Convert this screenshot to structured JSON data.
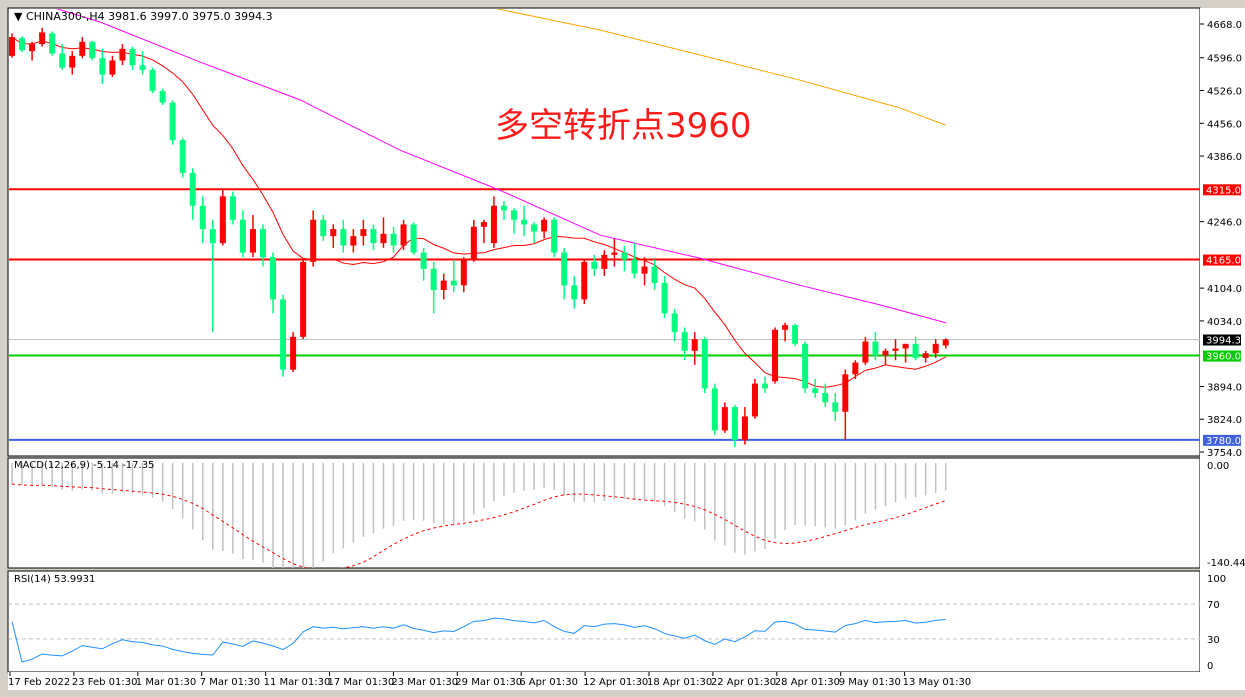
{
  "header": {
    "symbol_line": "CHINA300-,H4  3981.6 3997.0 3975.0 3994.3"
  },
  "annotation": "多空转折点3960",
  "macd_title": "MACD(12,26,9) -5.14 -17.35",
  "rsi_title": "RSI(14) 53.9931",
  "colors": {
    "bull": "#ff0000",
    "bear": "#00ff7f",
    "ma_fast": "#ff0000",
    "ma_mid": "#ff00ff",
    "ma_slow": "#ffa500",
    "macd_hist": "#c0c0c0",
    "macd_signal": "#ff0000",
    "rsi": "#1e90ff",
    "res": "#ff0000",
    "sup": "#00cc00",
    "low": "#4060e0",
    "bid": "#c0c0c0"
  },
  "chart_data": {
    "type": "candlestick",
    "symbol": "CHINA300-",
    "timeframe": "H4",
    "ylim": [
      3754,
      4668
    ],
    "price_ticks": [
      "4668.0",
      "4596.0",
      "4526.0",
      "4456.0",
      "4386.0",
      "4246.0",
      "4104.0",
      "4034.0",
      "3894.0",
      "3824.0",
      "3754.0"
    ],
    "x_labels": [
      "17 Feb 2022",
      "23 Feb 01:30",
      "1 Mar 01:30",
      "7 Mar 01:30",
      "11 Mar 01:30",
      "17 Mar 01:30",
      "23 Mar 01:30",
      "29 Mar 01:30",
      "6 Apr 01:30",
      "12 Apr 01:30",
      "18 Apr 01:30",
      "22 Apr 01:30",
      "28 Apr 01:30",
      "9 May 01:30",
      "13 May 01:30"
    ],
    "ohlc": [
      [
        4600,
        4648,
        4596,
        4640
      ],
      [
        4638,
        4642,
        4608,
        4612
      ],
      [
        4610,
        4630,
        4590,
        4625
      ],
      [
        4625,
        4660,
        4620,
        4650
      ],
      [
        4648,
        4652,
        4600,
        4605
      ],
      [
        4605,
        4625,
        4570,
        4575
      ],
      [
        4575,
        4610,
        4560,
        4600
      ],
      [
        4600,
        4640,
        4595,
        4630
      ],
      [
        4630,
        4632,
        4590,
        4595
      ],
      [
        4595,
        4615,
        4540,
        4560
      ],
      [
        4560,
        4600,
        4555,
        4590
      ],
      [
        4590,
        4625,
        4580,
        4615
      ],
      [
        4615,
        4620,
        4570,
        4580
      ],
      [
        4580,
        4610,
        4560,
        4570
      ],
      [
        4570,
        4575,
        4520,
        4525
      ],
      [
        4525,
        4530,
        4495,
        4500
      ],
      [
        4500,
        4505,
        4410,
        4420
      ],
      [
        4420,
        4425,
        4340,
        4350
      ],
      [
        4350,
        4360,
        4250,
        4280
      ],
      [
        4280,
        4300,
        4200,
        4230
      ],
      [
        4230,
        4250,
        4010,
        4200
      ],
      [
        4200,
        4315,
        4195,
        4300
      ],
      [
        4300,
        4310,
        4240,
        4250
      ],
      [
        4250,
        4270,
        4170,
        4180
      ],
      [
        4180,
        4260,
        4170,
        4230
      ],
      [
        4230,
        4240,
        4150,
        4170
      ],
      [
        4170,
        4180,
        4050,
        4080
      ],
      [
        4080,
        4090,
        3915,
        3930
      ],
      [
        3930,
        4010,
        3925,
        4000
      ],
      [
        4000,
        4165,
        3995,
        4160
      ],
      [
        4160,
        4270,
        4150,
        4250
      ],
      [
        4250,
        4260,
        4205,
        4215
      ],
      [
        4215,
        4240,
        4190,
        4230
      ],
      [
        4230,
        4250,
        4180,
        4195
      ],
      [
        4195,
        4230,
        4180,
        4215
      ],
      [
        4215,
        4250,
        4195,
        4230
      ],
      [
        4230,
        4240,
        4185,
        4200
      ],
      [
        4200,
        4255,
        4190,
        4220
      ],
      [
        4220,
        4235,
        4180,
        4195
      ],
      [
        4195,
        4250,
        4185,
        4240
      ],
      [
        4240,
        4245,
        4175,
        4180
      ],
      [
        4180,
        4190,
        4120,
        4145
      ],
      [
        4145,
        4160,
        4050,
        4100
      ],
      [
        4100,
        4135,
        4080,
        4120
      ],
      [
        4120,
        4165,
        4095,
        4110
      ],
      [
        4110,
        4170,
        4095,
        4165
      ],
      [
        4165,
        4250,
        4160,
        4235
      ],
      [
        4235,
        4250,
        4200,
        4245
      ],
      [
        4200,
        4300,
        4190,
        4280
      ],
      [
        4280,
        4290,
        4250,
        4270
      ],
      [
        4270,
        4275,
        4220,
        4250
      ],
      [
        4250,
        4280,
        4215,
        4240
      ],
      [
        4240,
        4245,
        4200,
        4225
      ],
      [
        4225,
        4255,
        4210,
        4250
      ],
      [
        4250,
        4255,
        4170,
        4180
      ],
      [
        4180,
        4190,
        4080,
        4110
      ],
      [
        4110,
        4130,
        4060,
        4080
      ],
      [
        4080,
        4165,
        4070,
        4160
      ],
      [
        4160,
        4175,
        4130,
        4145
      ],
      [
        4145,
        4185,
        4130,
        4175
      ],
      [
        4175,
        4210,
        4150,
        4180
      ],
      [
        4180,
        4195,
        4140,
        4165
      ],
      [
        4165,
        4200,
        4125,
        4135
      ],
      [
        4135,
        4170,
        4110,
        4150
      ],
      [
        4150,
        4165,
        4100,
        4115
      ],
      [
        4115,
        4130,
        4040,
        4050
      ],
      [
        4050,
        4060,
        3990,
        4010
      ],
      [
        4010,
        4020,
        3950,
        3970
      ],
      [
        3970,
        4010,
        3940,
        3995
      ],
      [
        3995,
        4000,
        3880,
        3890
      ],
      [
        3890,
        3900,
        3790,
        3800
      ],
      [
        3800,
        3860,
        3795,
        3850
      ],
      [
        3850,
        3855,
        3765,
        3780
      ],
      [
        3780,
        3850,
        3770,
        3830
      ],
      [
        3830,
        3910,
        3825,
        3900
      ],
      [
        3900,
        3915,
        3880,
        3890
      ],
      [
        3905,
        4020,
        3900,
        4015
      ],
      [
        4015,
        4030,
        3990,
        4025
      ],
      [
        4025,
        4028,
        3980,
        3985
      ],
      [
        3985,
        3990,
        3880,
        3890
      ],
      [
        3890,
        3910,
        3870,
        3880
      ],
      [
        3880,
        3900,
        3850,
        3860
      ],
      [
        3860,
        3880,
        3820,
        3840
      ],
      [
        3840,
        3930,
        3780,
        3920
      ],
      [
        3920,
        3950,
        3910,
        3945
      ],
      [
        3945,
        4000,
        3940,
        3990
      ],
      [
        3990,
        4010,
        3950,
        3960
      ],
      [
        3960,
        3975,
        3940,
        3970
      ],
      [
        3970,
        3995,
        3950,
        3975
      ],
      [
        3975,
        3985,
        3945,
        3985
      ],
      [
        3985,
        4000,
        3950,
        3955
      ],
      [
        3955,
        3970,
        3945,
        3965
      ],
      [
        3965,
        3995,
        3955,
        3985
      ],
      [
        3981.6,
        3997,
        3975,
        3994.3
      ]
    ],
    "ma_fast_period": 12,
    "ma_mid": [
      [
        0,
        4730
      ],
      [
        8.8,
        4672
      ],
      [
        18.7,
        4587
      ],
      [
        28.7,
        4506
      ],
      [
        38.6,
        4399
      ],
      [
        48.6,
        4313
      ],
      [
        58.6,
        4217
      ],
      [
        68.5,
        4168
      ],
      [
        78.5,
        4110
      ],
      [
        86.5,
        4068
      ],
      [
        93,
        4030
      ]
    ],
    "ma_slow": [
      [
        46.6,
        4708
      ],
      [
        58.6,
        4655
      ],
      [
        68.5,
        4602
      ],
      [
        78.5,
        4548
      ],
      [
        88.4,
        4489
      ],
      [
        93,
        4452
      ]
    ],
    "levels": [
      {
        "price": 4315,
        "label": "4315.0",
        "kind": "res"
      },
      {
        "price": 4165,
        "label": "4165.0",
        "kind": "res"
      },
      {
        "price": 3994.3,
        "label": "3994.3",
        "kind": "bid"
      },
      {
        "price": 3960,
        "label": "3960.0",
        "kind": "sup"
      },
      {
        "price": 3780,
        "label": "3780.0",
        "kind": "low"
      }
    ],
    "macd": {
      "fast": 12,
      "slow": 26,
      "signal": 9,
      "ylim": [
        -140.44,
        0
      ],
      "ticks": [
        "0.00",
        "-140.44"
      ]
    },
    "rsi": {
      "period": 14,
      "ylim": [
        0,
        100
      ],
      "levels": [
        70,
        30
      ],
      "ticks": [
        "100",
        "70",
        "30",
        "0"
      ]
    }
  }
}
